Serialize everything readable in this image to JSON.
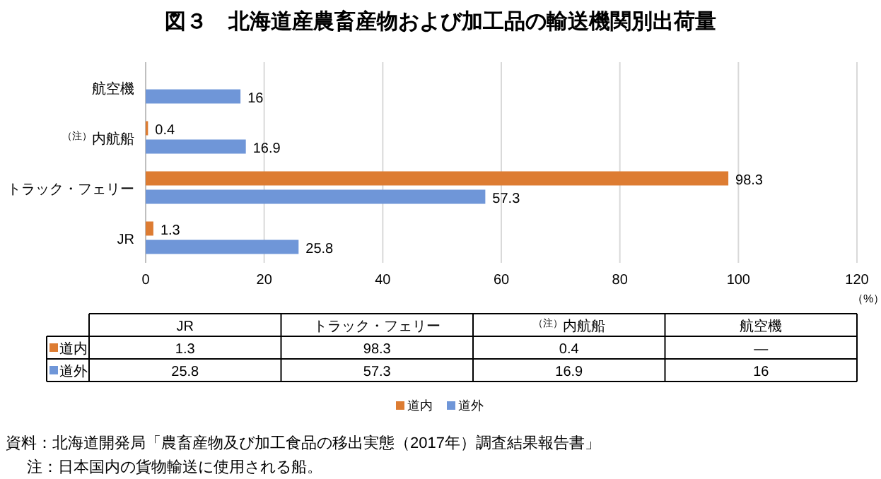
{
  "chart_data": {
    "type": "bar",
    "orientation": "horizontal",
    "title": "図３　北海道産農畜産物および加工品の輸送機関別出荷量",
    "xlabel": "（%）",
    "categories": [
      "航空機",
      "$^{（注）}$内航船",
      "トラック・フェリー",
      "JR"
    ],
    "series": [
      {
        "name": "道内",
        "color": "#dd7c32",
        "values": [
          null,
          0.4,
          98.3,
          1.3
        ],
        "value_labels": [
          "—",
          "0.4",
          "98.3",
          "1.3"
        ]
      },
      {
        "name": "道外",
        "color": "#6f96d8",
        "values": [
          16,
          16.9,
          57.3,
          25.8
        ],
        "value_labels": [
          "16",
          "16.9",
          "57.3",
          "25.8"
        ]
      }
    ],
    "xlim": [
      0,
      120
    ],
    "xticks": [
      0,
      20,
      40,
      60,
      80,
      100,
      120
    ],
    "grid": "x",
    "legend": "bottom",
    "data_labels": true,
    "annotations": [
      "資料：北海道開発局「農畜産物及び加工食品の移出実態（2017年）調査結果報告書」",
      "注：日本国内の貨物輸送に使用される船。"
    ]
  }
}
